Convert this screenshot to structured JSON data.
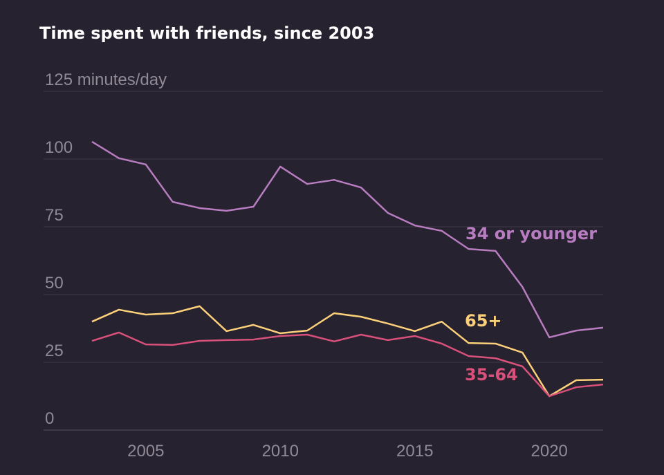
{
  "chart_data": {
    "type": "line",
    "title": "Time spent with friends, since 2003",
    "ylabel_unit": "minutes/day",
    "ylim": [
      0,
      125
    ],
    "xlim": [
      2003,
      2022
    ],
    "grid": true,
    "y_ticks": [
      {
        "value": 0,
        "label": "0"
      },
      {
        "value": 25,
        "label": "25"
      },
      {
        "value": 50,
        "label": "50"
      },
      {
        "value": 75,
        "label": "75"
      },
      {
        "value": 100,
        "label": "100"
      },
      {
        "value": 125,
        "label": "125 minutes/day"
      }
    ],
    "x_ticks": [
      {
        "value": 2005,
        "label": "2005"
      },
      {
        "value": 2010,
        "label": "2010"
      },
      {
        "value": 2015,
        "label": "2015"
      },
      {
        "value": 2020,
        "label": "2020"
      }
    ],
    "x": [
      2003,
      2004,
      2005,
      2006,
      2007,
      2008,
      2009,
      2010,
      2011,
      2012,
      2013,
      2014,
      2015,
      2016,
      2017,
      2018,
      2019,
      2020,
      2021,
      2022
    ],
    "series": [
      {
        "name": "34 or younger",
        "color": "#b87dc0",
        "values": [
          106.4,
          100.3,
          98,
          84.2,
          81.9,
          80.9,
          82.4,
          97.2,
          90.8,
          92.3,
          89.5,
          80.1,
          75.5,
          73.5,
          66.8,
          66.1,
          52.8,
          34.2,
          36.7,
          37.8
        ]
      },
      {
        "name": "65+",
        "color": "#fdd07a",
        "values": [
          40,
          44.4,
          42.6,
          43.1,
          45.7,
          36.5,
          38.8,
          35.7,
          36.7,
          43.1,
          41.8,
          39.3,
          36.5,
          40,
          32.1,
          31.9,
          28.6,
          12.5,
          18.4,
          18.6
        ]
      },
      {
        "name": "35-64",
        "color": "#d9507a",
        "values": [
          32.9,
          36,
          31.6,
          31.4,
          32.9,
          33.2,
          33.4,
          34.7,
          35.2,
          32.7,
          35.2,
          33.2,
          34.7,
          31.9,
          27.3,
          26.5,
          23.5,
          12.5,
          15.8,
          16.8
        ]
      }
    ],
    "background": "#272230"
  }
}
